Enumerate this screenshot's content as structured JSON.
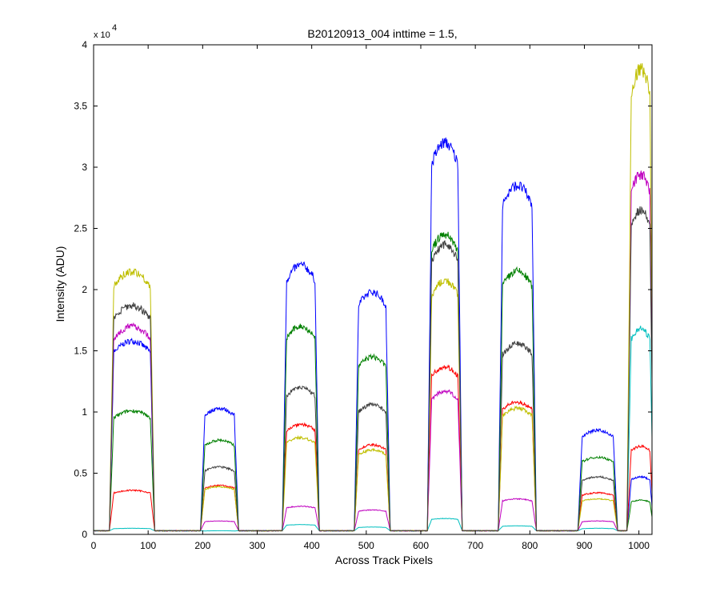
{
  "chart_data": {
    "type": "line",
    "title": "B20120913_004 inttime = 1.5,",
    "xlabel": "Across Track Pixels",
    "ylabel": "Intensity (ADU)",
    "y_multiplier_text": "x 10",
    "y_multiplier_exponent": "4",
    "xlim": [
      0,
      1024
    ],
    "ylim": [
      0,
      40000
    ],
    "x_ticks": [
      0,
      100,
      200,
      300,
      400,
      500,
      600,
      700,
      800,
      900,
      1000
    ],
    "x_tick_labels": [
      "0",
      "100",
      "200",
      "300",
      "400",
      "500",
      "600",
      "700",
      "800",
      "900",
      "1000"
    ],
    "y_ticks": [
      0,
      5000,
      10000,
      15000,
      20000,
      25000,
      30000,
      35000,
      40000
    ],
    "y_tick_labels": [
      "0",
      "0.5",
      "1",
      "1.5",
      "2",
      "2.5",
      "3",
      "3.5",
      "4"
    ],
    "grid": false,
    "baseline": 300,
    "bands": [
      {
        "start": 33,
        "end": 108
      },
      {
        "start": 200,
        "end": 262
      },
      {
        "start": 350,
        "end": 410
      },
      {
        "start": 482,
        "end": 540
      },
      {
        "start": 616,
        "end": 672
      },
      {
        "start": 746,
        "end": 808
      },
      {
        "start": 892,
        "end": 957
      },
      {
        "start": 982,
        "end": 1024
      }
    ],
    "series": [
      {
        "color": "#0000ff",
        "levels": [
          15800,
          10300,
          22000,
          19800,
          32000,
          28500,
          8500,
          4700
        ]
      },
      {
        "color": "#008000",
        "levels": [
          10100,
          7700,
          17000,
          14500,
          24500,
          21500,
          6300,
          2800
        ]
      },
      {
        "color": "#ff0000",
        "levels": [
          3600,
          4000,
          9000,
          7300,
          13700,
          10800,
          3400,
          7200
        ]
      },
      {
        "color": "#00bfbf",
        "levels": [
          500,
          300,
          800,
          600,
          1300,
          700,
          500,
          16800
        ]
      },
      {
        "color": "#bf00bf",
        "levels": [
          17000,
          1100,
          2300,
          2000,
          11700,
          2900,
          1100,
          29400
        ]
      },
      {
        "color": "#bfbf00",
        "levels": [
          21500,
          3900,
          7900,
          6900,
          20700,
          10300,
          2900,
          38000
        ]
      },
      {
        "color": "#404040",
        "levels": [
          18700,
          5500,
          12000,
          10600,
          23700,
          15600,
          4700,
          26500
        ]
      }
    ]
  }
}
